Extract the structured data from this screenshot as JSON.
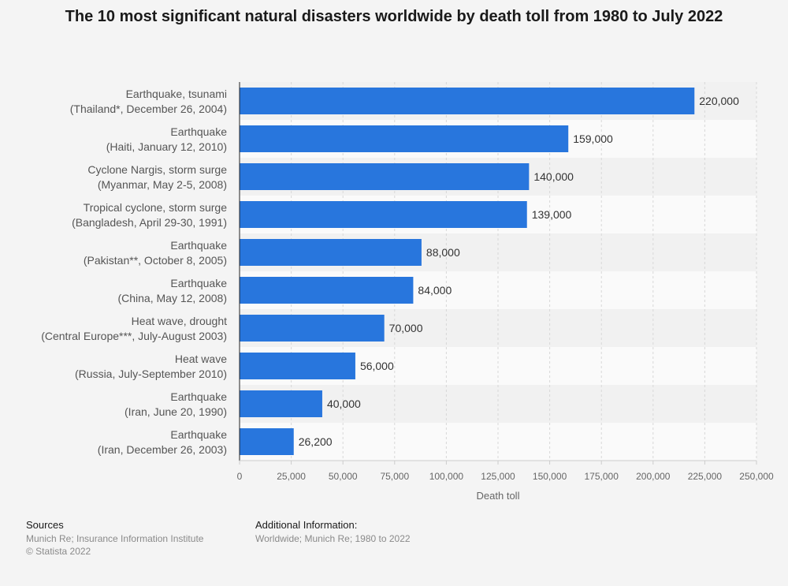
{
  "chart_data": {
    "type": "bar",
    "orientation": "horizontal",
    "title": "The 10 most significant natural disasters worldwide by death toll from 1980 to July 2022",
    "xlabel": "Death toll",
    "ylabel": "",
    "xlim": [
      0,
      250000
    ],
    "grid": true,
    "categories": [
      [
        "Earthquake, tsunami",
        "(Thailand*, December 26, 2004)"
      ],
      [
        "Earthquake",
        "(Haiti, January 12, 2010)"
      ],
      [
        "Cyclone Nargis, storm surge",
        "(Myanmar, May 2-5, 2008)"
      ],
      [
        "Tropical cyclone, storm surge",
        "(Bangladesh, April 29-30, 1991)"
      ],
      [
        "Earthquake",
        "(Pakistan**, October 8, 2005)"
      ],
      [
        "Earthquake",
        "(China, May 12, 2008)"
      ],
      [
        "Heat wave, drought",
        "(Central Europe***, July-August 2003)"
      ],
      [
        "Heat wave",
        "(Russia, July-September 2010)"
      ],
      [
        "Earthquake",
        "(Iran, June 20, 1990)"
      ],
      [
        "Earthquake",
        "(Iran, December 26, 2003)"
      ]
    ],
    "values": [
      220000,
      159000,
      140000,
      139000,
      88000,
      84000,
      70000,
      56000,
      40000,
      26200
    ],
    "value_labels": [
      "220,000",
      "159,000",
      "140,000",
      "139,000",
      "88,000",
      "84,000",
      "70,000",
      "56,000",
      "40,000",
      "26,200"
    ],
    "ticks": [
      0,
      25000,
      50000,
      75000,
      100000,
      125000,
      150000,
      175000,
      200000,
      225000,
      250000
    ],
    "tick_labels": [
      "0",
      "25,000",
      "50,000",
      "75,000",
      "100,000",
      "125,000",
      "150,000",
      "175,000",
      "200,000",
      "225,000",
      "250,000"
    ],
    "bar_color": "#2876dd"
  },
  "footer": {
    "sources_heading": "Sources",
    "sources_line1": "Munich Re; Insurance Information Institute",
    "sources_line2": "© Statista 2022",
    "info_heading": "Additional Information:",
    "info_line1": "Worldwide; Munich Re; 1980 to 2022"
  }
}
